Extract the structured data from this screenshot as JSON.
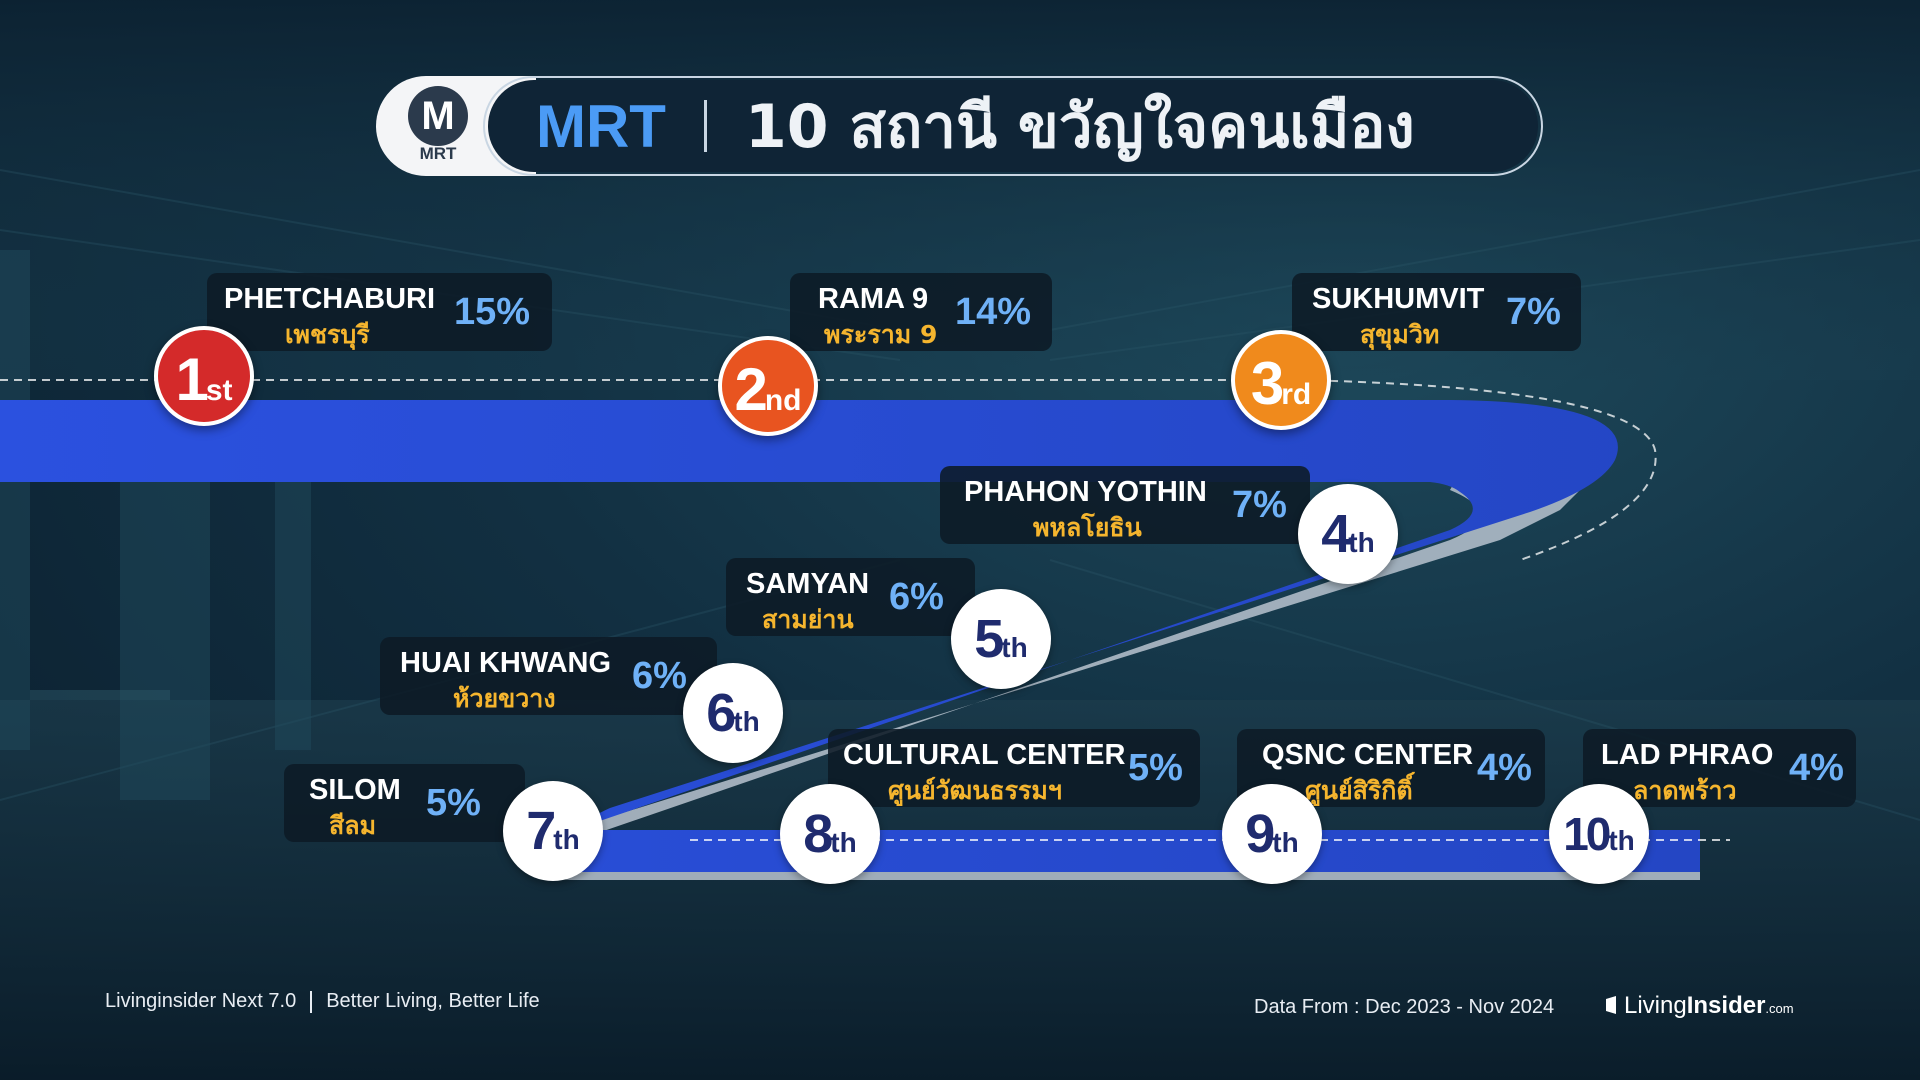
{
  "header": {
    "logo_letter": "M",
    "logo_label": "MRT",
    "title_brand": "MRT",
    "title_text": "10 สถานี ขวัญใจคนเมือง"
  },
  "colors": {
    "track_blue": "#2a4fd8",
    "rank1": "#d42a2a",
    "rank2": "#e85420",
    "rank3": "#f08a1c",
    "percent": "#6fb1f7",
    "thai_name": "#f5b52e"
  },
  "stations": [
    {
      "rank_num": "1",
      "rank_suffix": "st",
      "name_en": "PHETCHABURI",
      "name_th": "เพชรบุรี",
      "percent": "15%"
    },
    {
      "rank_num": "2",
      "rank_suffix": "nd",
      "name_en": "RAMA 9",
      "name_th": "พระราม 9",
      "percent": "14%"
    },
    {
      "rank_num": "3",
      "rank_suffix": "rd",
      "name_en": "SUKHUMVIT",
      "name_th": "สุขุมวิท",
      "percent": "7%"
    },
    {
      "rank_num": "4",
      "rank_suffix": "th",
      "name_en": "PHAHON YOTHIN",
      "name_th": "พหลโยธิน",
      "percent": "7%"
    },
    {
      "rank_num": "5",
      "rank_suffix": "th",
      "name_en": "SAMYAN",
      "name_th": "สามย่าน",
      "percent": "6%"
    },
    {
      "rank_num": "6",
      "rank_suffix": "th",
      "name_en": "HUAI KHWANG",
      "name_th": "ห้วยขวาง",
      "percent": "6%"
    },
    {
      "rank_num": "7",
      "rank_suffix": "th",
      "name_en": "SILOM",
      "name_th": "สีลม",
      "percent": "5%"
    },
    {
      "rank_num": "8",
      "rank_suffix": "th",
      "name_en": "CULTURAL CENTER",
      "name_th": "ศูนย์วัฒนธรรมฯ",
      "percent": "5%"
    },
    {
      "rank_num": "9",
      "rank_suffix": "th",
      "name_en": "QSNC CENTER",
      "name_th": "ศูนย์สิริกิติ์",
      "percent": "4%"
    },
    {
      "rank_num": "10",
      "rank_suffix": "th",
      "name_en": "LAD PHRAO",
      "name_th": "ลาดพร้าว",
      "percent": "4%"
    }
  ],
  "footer": {
    "left_brand": "Livinginsider Next 7.0",
    "left_tagline": "Better Living, Better Life",
    "data_range": "Data From : Dec 2023 - Nov 2024",
    "logo_word1": "Living",
    "logo_word2": "Insider",
    "logo_word3": ".com"
  }
}
